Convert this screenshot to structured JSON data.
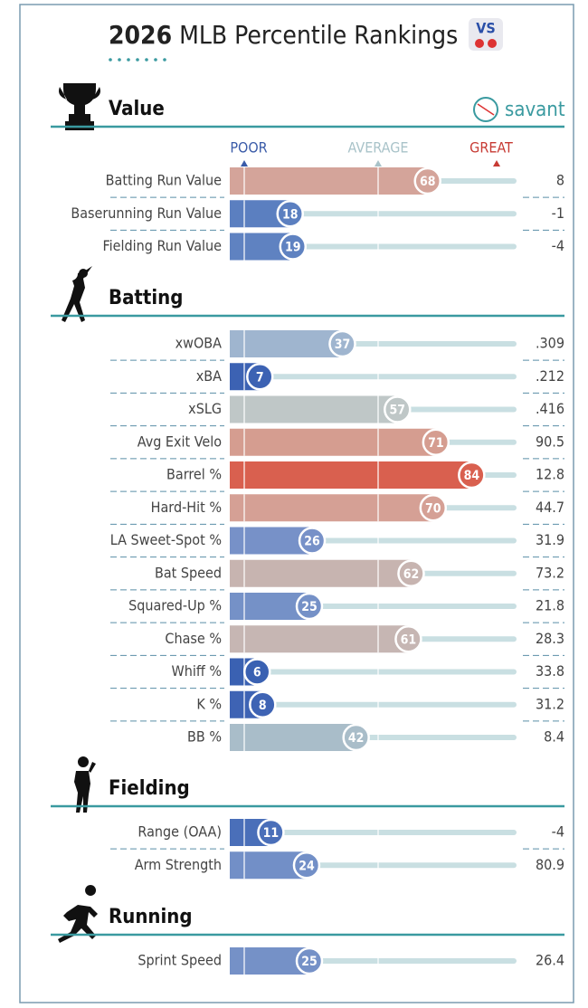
{
  "header": {
    "year": "2026",
    "title": "MLB Percentile Rankings",
    "logo": "savant",
    "scale": {
      "poor": "POOR",
      "average": "AVERAGE",
      "great": "GREAT"
    }
  },
  "sections": [
    {
      "title": "Value",
      "rows": [
        {
          "label": "Batting Run Value",
          "percentile": 68,
          "value": "8",
          "color": "#d4a49a"
        },
        {
          "label": "Baserunning Run Value",
          "percentile": 18,
          "value": "-1",
          "color": "#5b7fc0"
        },
        {
          "label": "Fielding Run Value",
          "percentile": 19,
          "value": "-4",
          "color": "#5f82c1"
        }
      ]
    },
    {
      "title": "Batting",
      "rows": [
        {
          "label": "xwOBA",
          "percentile": 37,
          "value": ".309",
          "color": "#9fb5cf"
        },
        {
          "label": "xBA",
          "percentile": 7,
          "value": ".212",
          "color": "#3c62b3"
        },
        {
          "label": "xSLG",
          "percentile": 57,
          "value": ".416",
          "color": "#bfc7c7"
        },
        {
          "label": "Avg Exit Velo",
          "percentile": 71,
          "value": "90.5",
          "color": "#d59d90"
        },
        {
          "label": "Barrel %",
          "percentile": 84,
          "value": "12.8",
          "color": "#d9604f"
        },
        {
          "label": "Hard-Hit %",
          "percentile": 70,
          "value": "44.7",
          "color": "#d5a095"
        },
        {
          "label": "LA Sweet-Spot %",
          "percentile": 26,
          "value": "31.9",
          "color": "#7791c8"
        },
        {
          "label": "Bat Speed",
          "percentile": 62,
          "value": "73.2",
          "color": "#c7b4b0"
        },
        {
          "label": "Squared-Up %",
          "percentile": 25,
          "value": "21.8",
          "color": "#7591c7"
        },
        {
          "label": "Chase %",
          "percentile": 61,
          "value": "28.3",
          "color": "#c6b6b3"
        },
        {
          "label": "Whiff %",
          "percentile": 6,
          "value": "33.8",
          "color": "#3a61b2"
        },
        {
          "label": "K %",
          "percentile": 8,
          "value": "31.2",
          "color": "#3e63b4"
        },
        {
          "label": "BB %",
          "percentile": 42,
          "value": "8.4",
          "color": "#a9bdc9"
        }
      ]
    },
    {
      "title": "Fielding",
      "rows": [
        {
          "label": "Range (OAA)",
          "percentile": 11,
          "value": "-4",
          "color": "#4a6fb9"
        },
        {
          "label": "Arm Strength",
          "percentile": 24,
          "value": "80.9",
          "color": "#728fc7"
        }
      ]
    },
    {
      "title": "Running",
      "rows": [
        {
          "label": "Sprint Speed",
          "percentile": 25,
          "value": "26.4",
          "color": "#7591c7"
        }
      ]
    }
  ]
}
